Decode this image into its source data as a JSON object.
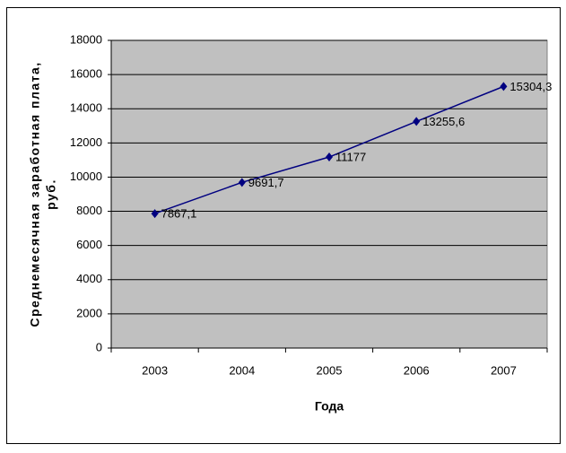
{
  "chart_data": {
    "type": "line",
    "ylabel": [
      "Среднемесячная заработная плата,",
      "руб."
    ],
    "xlabel": "Года",
    "categories": [
      "2003",
      "2004",
      "2005",
      "2006",
      "2007"
    ],
    "series": [
      {
        "color": "#000080",
        "values": [
          7867.1,
          9691.7,
          11177,
          13255.6,
          15304.3
        ],
        "value_labels": [
          "7867,1",
          "9691,7",
          "11177",
          "13255,6",
          "15304,3"
        ]
      }
    ],
    "ylim": [
      0,
      18000
    ],
    "yticks": [
      0,
      2000,
      4000,
      6000,
      8000,
      10000,
      12000,
      14000,
      16000,
      18000
    ],
    "grid": true,
    "plot_background": "#c0c0c0"
  }
}
